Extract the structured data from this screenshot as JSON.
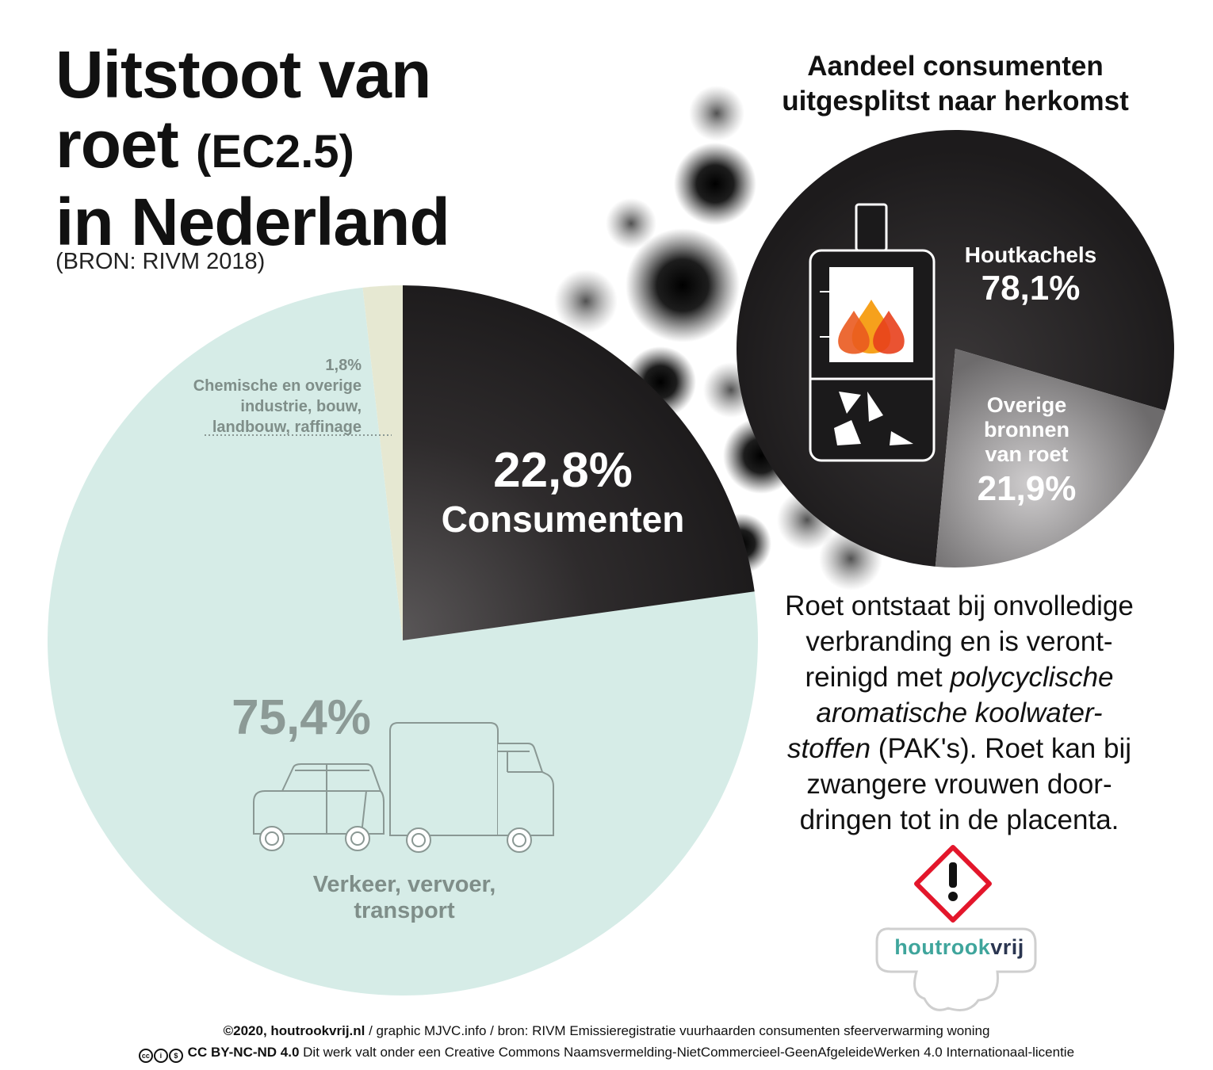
{
  "title": {
    "line1": "Uitstoot van",
    "line2_main": "roet",
    "line2_small": "(EC2.5)",
    "line3": "in Nederland"
  },
  "source": "(BRON: RIVM 2018)",
  "sub_chart_title": "Aandeel consumenten uitgesplitst naar herkomst",
  "chart_data": [
    {
      "type": "pie",
      "title": "Uitstoot van roet (EC2.5) in Nederland",
      "slices": [
        {
          "label": "Consumenten",
          "value": 22.8,
          "value_text": "22,8%",
          "color": "#2b2829"
        },
        {
          "label": "Verkeer, vervoer, transport",
          "value": 75.4,
          "value_text": "75,4%",
          "color": "#d6ece7"
        },
        {
          "label": "Chemische en overige industrie, bouw, landbouw, raffinage",
          "value": 1.8,
          "value_text": "1,8%",
          "color": "#e6e8d2"
        }
      ]
    },
    {
      "type": "pie",
      "title": "Aandeel consumenten uitgesplitst naar herkomst",
      "slices": [
        {
          "label": "Houtkachels",
          "value": 78.1,
          "value_text": "78,1%",
          "color": "#2b2829"
        },
        {
          "label": "Overige bronnen van roet",
          "value": 21.9,
          "value_text": "21,9%",
          "color": "#8a8889"
        }
      ]
    }
  ],
  "labels": {
    "chem_pct": "1,8%",
    "chem_line1": "Chemische en overige",
    "chem_line2": "industrie, bouw,",
    "chem_line3": "landbouw, raffinage",
    "cons_pct": "22,8%",
    "cons_label": "Consumenten",
    "traffic_pct": "75,4%",
    "traffic_line1": "Verkeer, vervoer,",
    "traffic_line2": "transport",
    "hout_label": "Houtkachels",
    "hout_pct": "78,1%",
    "overig_line1": "Overige",
    "overig_line2": "bronnen",
    "overig_line3": "van roet",
    "overig_pct": "21,9%"
  },
  "body_text": {
    "l1": "Roet ontstaat bij onvolledige",
    "l2": "verbranding en is veront-",
    "l3a": "reinigd met ",
    "l3b": "polycyclische",
    "l4": "aromatische koolwater-",
    "l5a": "stoffen",
    "l5b": " (PAK's). Roet kan bij",
    "l6": "zwangere vrouwen door-",
    "l7": "dringen tot in de placenta."
  },
  "logo": {
    "part1": "houtrook",
    "part2": "vrij"
  },
  "footer": {
    "line1_bold": "©2020, houtrookvrij.nl",
    "line1_rest": " / graphic MJVC.info / bron: RIVM Emissieregistratie vuurhaarden consumenten sfeerverwarming woning",
    "line2_bold": "CC BY-NC-ND 4.0",
    "line2_rest": "  Dit werk valt onder een Creative Commons Naamsvermelding-NietCommercieel-GeenAfgeleideWerken 4.0 Internationaal-licentie"
  },
  "icons": [
    "wood-stove-icon",
    "flame-icon",
    "car-icon",
    "truck-icon",
    "hazard-exclamation-icon",
    "cloud-logo-icon",
    "creative-commons-icon"
  ],
  "colors": {
    "consumenten": "#2b2829",
    "verkeer": "#d6ece7",
    "industrie": "#e6e8d2",
    "overig": "#8a8889",
    "hazard": "#e3162b",
    "flame_orange": "#f28b1f",
    "flame_red": "#e8401c",
    "logo_teal": "#3fa59c"
  }
}
